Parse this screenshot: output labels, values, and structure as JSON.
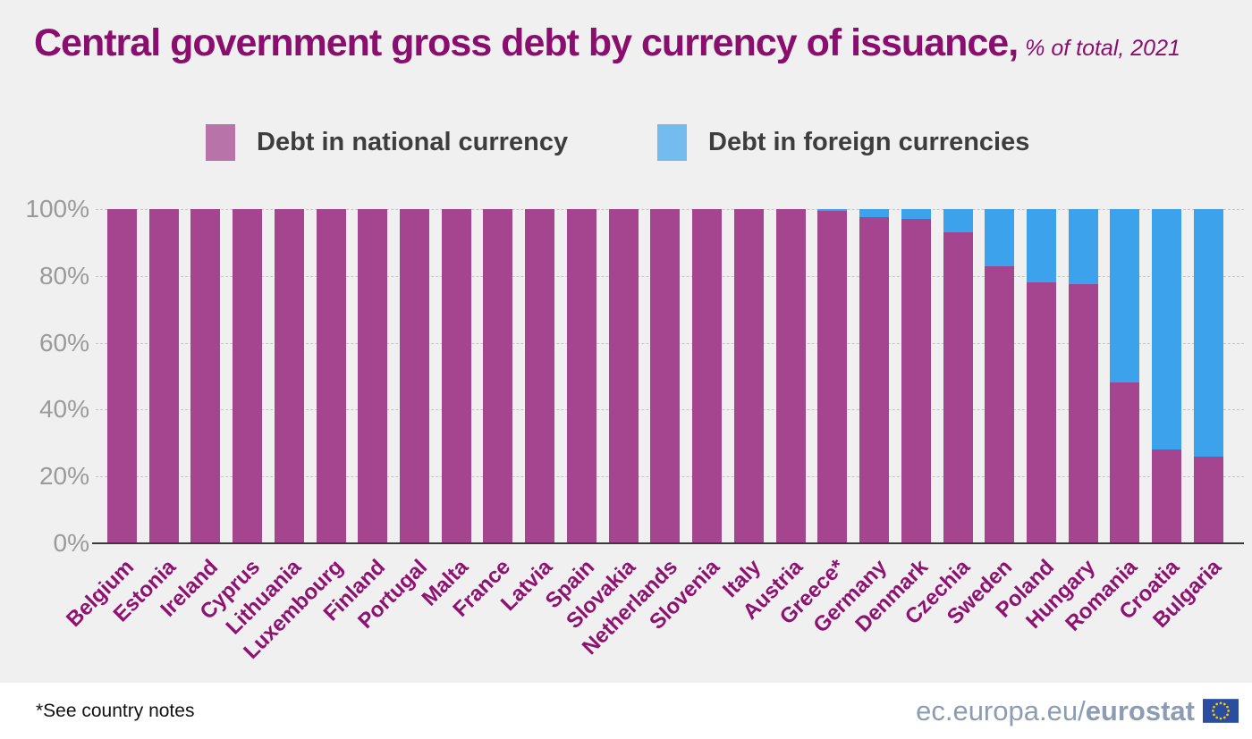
{
  "title": {
    "main": "Central government gross debt by currency of issuance,",
    "subtitle": "% of total, 2021"
  },
  "legend": {
    "items": [
      {
        "label": "Debt in national currency",
        "swatch_color": "#b873a8"
      },
      {
        "label": "Debt in foreign currencies",
        "swatch_color": "#74bbf0"
      }
    ]
  },
  "footnote": "*See country notes",
  "brand": {
    "url_prefix": "ec.europa.eu/",
    "url_bold": "eurostat",
    "flag_icon": "eu-flag",
    "text_color": "#8b9cb3",
    "flag_blue": "#2b4da0",
    "flag_star_color": "#ffcc00"
  },
  "chart_data": {
    "type": "bar",
    "stacked": true,
    "title": "Central government gross debt by currency of issuance, % of total, 2021",
    "categories": [
      "Belgium",
      "Estonia",
      "Ireland",
      "Cyprus",
      "Lithuania",
      "Luxembourg",
      "Finland",
      "Portugal",
      "Malta",
      "France",
      "Latvia",
      "Spain",
      "Slovakia",
      "Netherlands",
      "Slovenia",
      "Italy",
      "Austria",
      "Greece*",
      "Germany",
      "Denmark",
      "Czechia",
      "Sweden",
      "Poland",
      "Hungary",
      "Romania",
      "Croatia",
      "Bulgaria"
    ],
    "series": [
      {
        "name": "Debt in national currency",
        "color": "#a6458f",
        "values": [
          100,
          100,
          100,
          100,
          100,
          100,
          100,
          100,
          100,
          100,
          100,
          100,
          100,
          100,
          100,
          100,
          100,
          99.5,
          97.5,
          97,
          93,
          83,
          78,
          77.5,
          48,
          28,
          26
        ]
      },
      {
        "name": "Debt in foreign currencies",
        "color": "#3da2ec",
        "values": [
          0,
          0,
          0,
          0,
          0,
          0,
          0,
          0,
          0,
          0,
          0,
          0,
          0,
          0,
          0,
          0,
          0,
          0.5,
          2.5,
          3,
          7,
          17,
          22,
          22.5,
          52,
          72,
          74
        ]
      }
    ],
    "xlabel": "",
    "ylabel": "",
    "y_ticks": [
      "0%",
      "20%",
      "40%",
      "60%",
      "80%",
      "100%"
    ],
    "ylim": [
      0,
      100
    ],
    "grid": "horizontal-dashed",
    "legend_position": "top"
  }
}
